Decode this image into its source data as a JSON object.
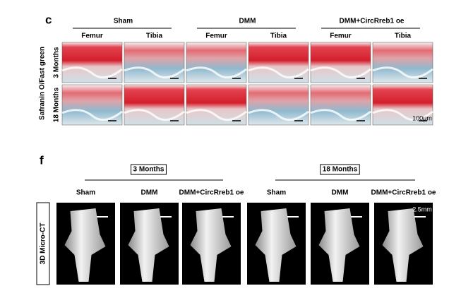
{
  "panel_c": {
    "label": "c",
    "groups": [
      {
        "name": "Sham",
        "columns": [
          "Femur",
          "Tibia"
        ]
      },
      {
        "name": "DMM",
        "columns": [
          "Femur",
          "Tibia"
        ]
      },
      {
        "name": "DMM+CircRreb1 oe",
        "columns": [
          "Femur",
          "Tibia"
        ]
      }
    ],
    "rows": [
      "3 Months",
      "18 Months"
    ],
    "side_label": "Safranin O/Fast green",
    "scale_bar": "100μm"
  },
  "panel_f": {
    "label": "f",
    "time_groups": [
      {
        "name": "3 Months",
        "columns": [
          "Sham",
          "DMM",
          "DMM+CircRreb1 oe"
        ]
      },
      {
        "name": "18 Months",
        "columns": [
          "Sham",
          "DMM",
          "DMM+CircRreb1 oe"
        ]
      }
    ],
    "side_label": "3D Micro-CT",
    "scale_bar": "2.5mm"
  }
}
